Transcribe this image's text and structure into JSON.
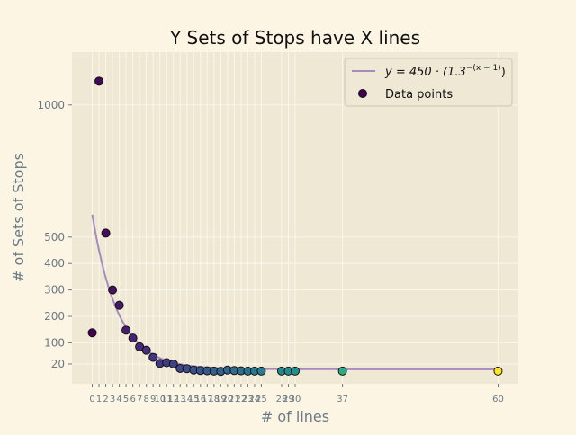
{
  "chart_data": {
    "type": "scatter",
    "title": "Y Sets of Stops have X lines",
    "xlabel": "# of lines",
    "ylabel": "# of Sets of Stops",
    "xlim": [
      -3.0,
      63.0
    ],
    "ylim": [
      -55,
      1200
    ],
    "x_ticks": [
      0,
      1,
      2,
      3,
      4,
      5,
      6,
      7,
      8,
      9,
      10,
      11,
      12,
      13,
      14,
      15,
      16,
      17,
      18,
      19,
      20,
      21,
      22,
      23,
      24,
      25,
      28,
      29,
      30,
      37,
      60
    ],
    "y_ticks": [
      20,
      100,
      200,
      300,
      400,
      500,
      1000
    ],
    "grid": true,
    "legend_position": "upper right",
    "series": [
      {
        "name": "y = 450 · (1.3^{-(x-1)})",
        "type": "line",
        "color": "#a68bbf",
        "formula": {
          "a": 450,
          "b": 1.3,
          "shift": 1,
          "x_range": [
            0,
            60
          ]
        }
      },
      {
        "name": "Data points",
        "type": "scatter",
        "colormap": "viridis",
        "x": [
          0,
          1,
          2,
          3,
          4,
          5,
          6,
          7,
          8,
          9,
          10,
          11,
          12,
          13,
          14,
          15,
          16,
          17,
          18,
          19,
          20,
          21,
          22,
          23,
          24,
          25,
          28,
          29,
          30,
          37,
          60
        ],
        "y": [
          138,
          1090,
          515,
          300,
          242,
          148,
          118,
          85,
          72,
          45,
          22,
          25,
          20,
          3,
          2,
          -3,
          -5,
          -6,
          -7,
          -8,
          -3,
          -5,
          -6,
          -7,
          -7,
          -7,
          -7,
          -7,
          -7,
          -7,
          -7
        ]
      }
    ]
  },
  "legend": {
    "line_prefix": "y = 450 · (1.3",
    "line_exponent": "−(x − 1)",
    "line_suffix": ")",
    "points_label": "Data points"
  }
}
